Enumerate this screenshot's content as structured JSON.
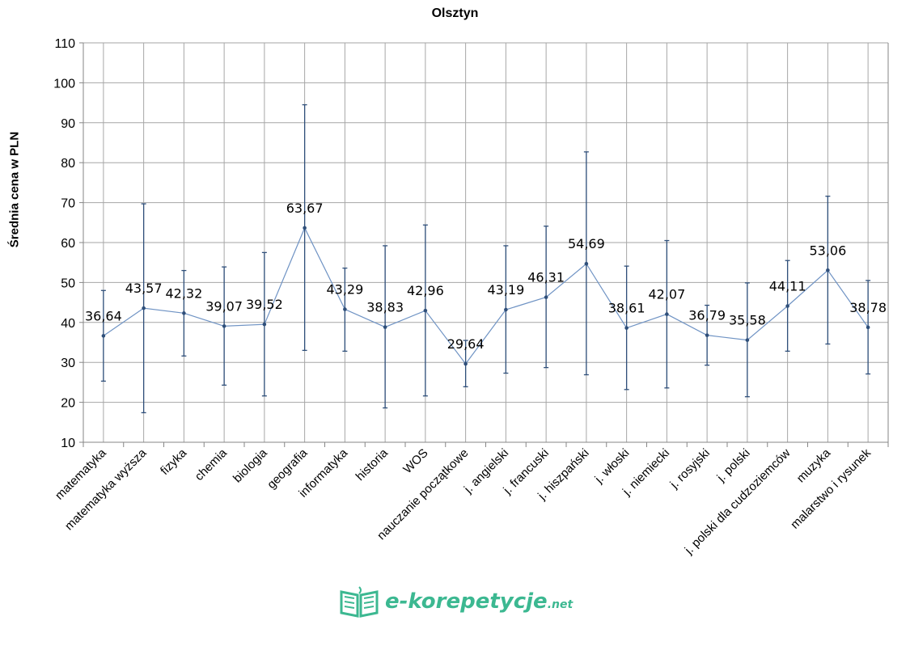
{
  "chart_data": {
    "type": "line",
    "title": "Olsztyn",
    "xlabel": "",
    "ylabel": "Średnia cena w PLN",
    "ylim": [
      10,
      110
    ],
    "yticks": [
      10,
      20,
      30,
      40,
      50,
      60,
      70,
      80,
      90,
      100,
      110
    ],
    "grid": true,
    "categories": [
      "matematyka",
      "matematyka wyższa",
      "fizyka",
      "chemia",
      "biologia",
      "geografia",
      "informatyka",
      "historia",
      "WOS",
      "nauczanie początkowe",
      "j. angielski",
      "j. francuski",
      "j. hiszpański",
      "j. włoski",
      "j. niemiecki",
      "j. rosyjski",
      "j. polski",
      "j. polski dla cudzoziemców",
      "muzyka",
      "malarstwo i rysunek"
    ],
    "series": [
      {
        "name": "Średnia cena",
        "color": "#6f93c4",
        "values": [
          36.64,
          43.57,
          42.32,
          39.07,
          39.52,
          63.67,
          43.29,
          38.83,
          42.96,
          29.64,
          43.19,
          46.31,
          54.69,
          38.61,
          42.07,
          36.79,
          35.58,
          44.11,
          53.06,
          38.78
        ],
        "labels": [
          "36,64",
          "43,57",
          "42,32",
          "39,07",
          "39,52",
          "63,67",
          "43,29",
          "38,83",
          "42,96",
          "29,64",
          "43,19",
          "46,31",
          "54,69",
          "38,61",
          "42,07",
          "36,79",
          "35,58",
          "44,11",
          "53,06",
          "38,78"
        ],
        "error_high": [
          48.0,
          69.7,
          53.0,
          53.9,
          57.5,
          94.5,
          53.6,
          59.2,
          64.4,
          35.5,
          59.2,
          64.1,
          82.7,
          54.1,
          60.5,
          44.3,
          49.9,
          55.5,
          71.6,
          50.5
        ],
        "error_low": [
          25.3,
          17.4,
          31.6,
          24.3,
          21.6,
          33.0,
          32.8,
          18.6,
          21.6,
          23.9,
          27.3,
          28.7,
          26.9,
          23.2,
          23.6,
          29.3,
          21.4,
          32.8,
          34.6,
          27.1
        ]
      }
    ]
  },
  "logo": {
    "text": "e-korepetycje",
    "suffix": ".net",
    "color": "#3cb891"
  }
}
